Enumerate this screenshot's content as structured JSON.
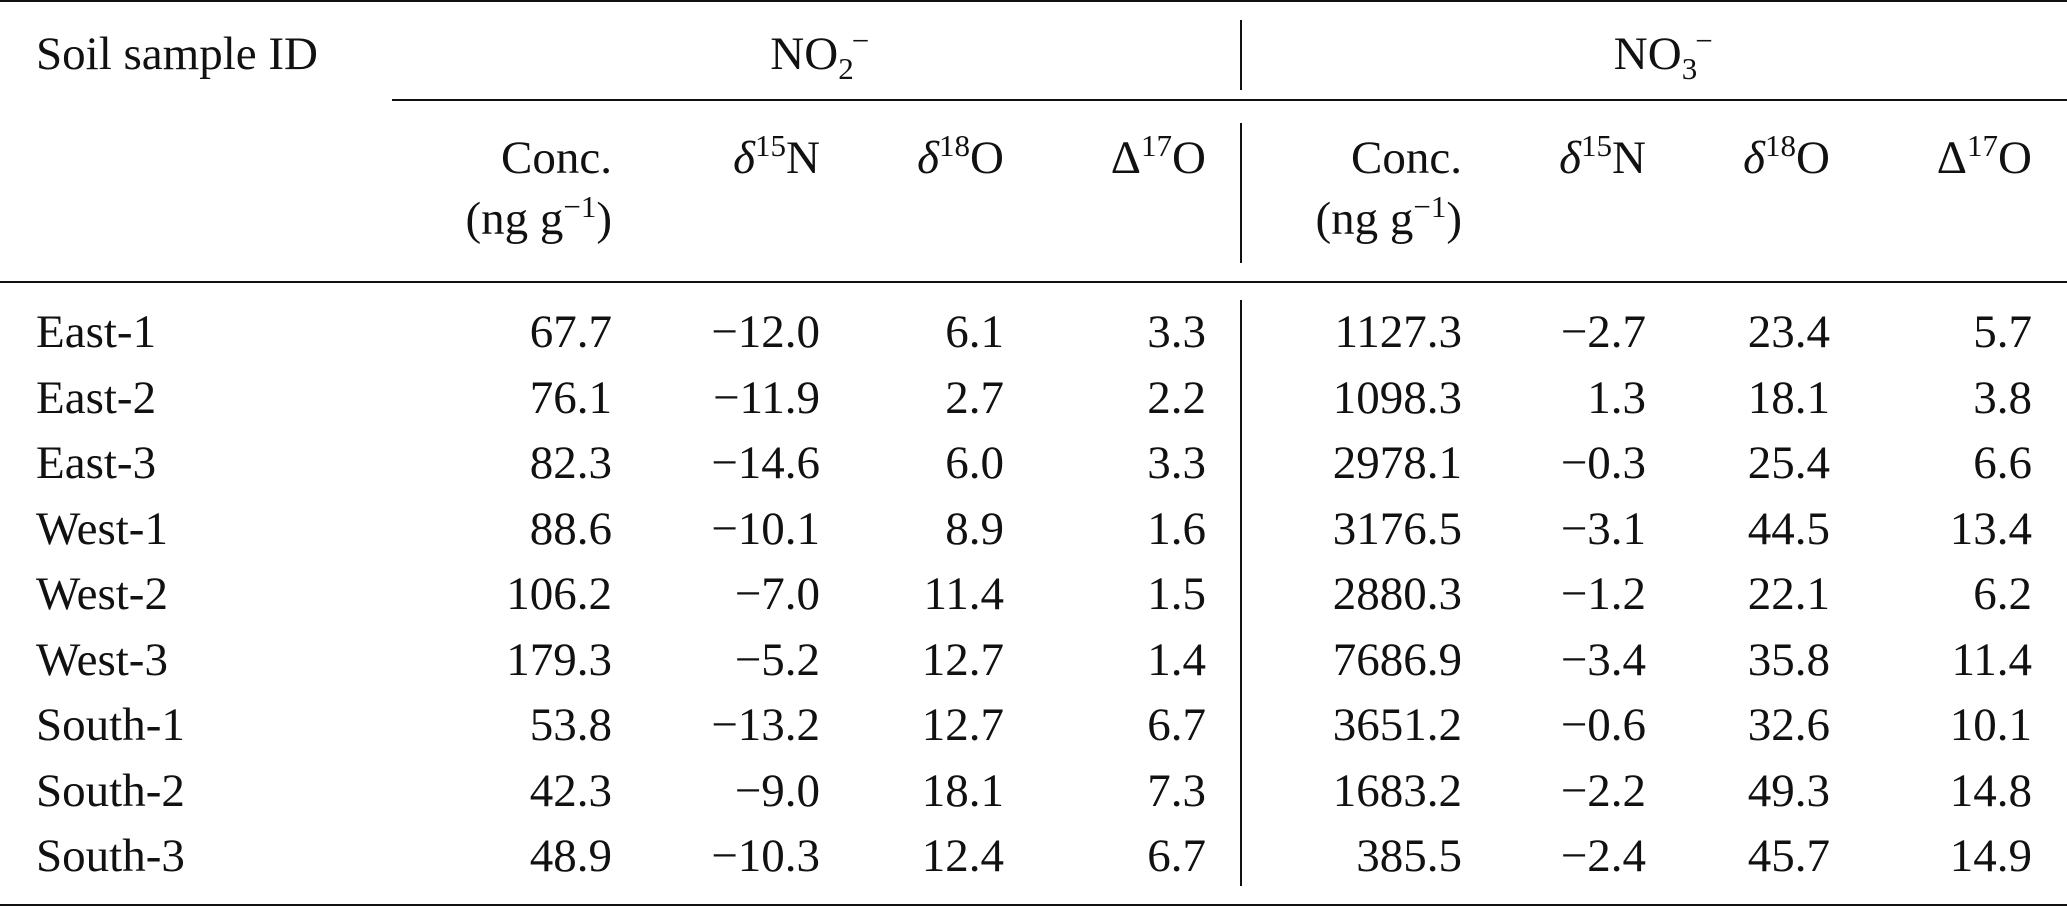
{
  "table": {
    "header": {
      "sample_id": "Soil sample ID",
      "groups": [
        {
          "base": "NO",
          "sub": "2",
          "charge": "−"
        },
        {
          "base": "NO",
          "sub": "3",
          "charge": "−"
        }
      ],
      "conc_line1": "Conc.",
      "conc_line2_pre": "(ng g",
      "conc_line2_exp": "−1",
      "conc_line2_post": ")",
      "d15n": {
        "sym": "δ",
        "iso": "15",
        "el": "N"
      },
      "d18o": {
        "sym": "δ",
        "iso": "18",
        "el": "O"
      },
      "D17o": {
        "sym": "Δ",
        "iso": "17",
        "el": "O"
      }
    },
    "rows": [
      {
        "id": "East-1",
        "v": [
          "67.7",
          "−12.0",
          "6.1",
          "3.3",
          "1127.3",
          "−2.7",
          "23.4",
          "5.7"
        ]
      },
      {
        "id": "East-2",
        "v": [
          "76.1",
          "−11.9",
          "2.7",
          "2.2",
          "1098.3",
          "1.3",
          "18.1",
          "3.8"
        ]
      },
      {
        "id": "East-3",
        "v": [
          "82.3",
          "−14.6",
          "6.0",
          "3.3",
          "2978.1",
          "−0.3",
          "25.4",
          "6.6"
        ]
      },
      {
        "id": "West-1",
        "v": [
          "88.6",
          "−10.1",
          "8.9",
          "1.6",
          "3176.5",
          "−3.1",
          "44.5",
          "13.4"
        ]
      },
      {
        "id": "West-2",
        "v": [
          "106.2",
          "−7.0",
          "11.4",
          "1.5",
          "2880.3",
          "−1.2",
          "22.1",
          "6.2"
        ]
      },
      {
        "id": "West-3",
        "v": [
          "179.3",
          "−5.2",
          "12.7",
          "1.4",
          "7686.9",
          "−3.4",
          "35.8",
          "11.4"
        ]
      },
      {
        "id": "South-1",
        "v": [
          "53.8",
          "−13.2",
          "12.7",
          "6.7",
          "3651.2",
          "−0.6",
          "32.6",
          "10.1"
        ]
      },
      {
        "id": "South-2",
        "v": [
          "42.3",
          "−9.0",
          "18.1",
          "7.3",
          "1683.2",
          "−2.2",
          "49.3",
          "14.8"
        ]
      },
      {
        "id": "South-3",
        "v": [
          "48.9",
          "−10.3",
          "12.4",
          "6.7",
          "385.5",
          "−2.4",
          "45.7",
          "14.9"
        ]
      }
    ]
  }
}
